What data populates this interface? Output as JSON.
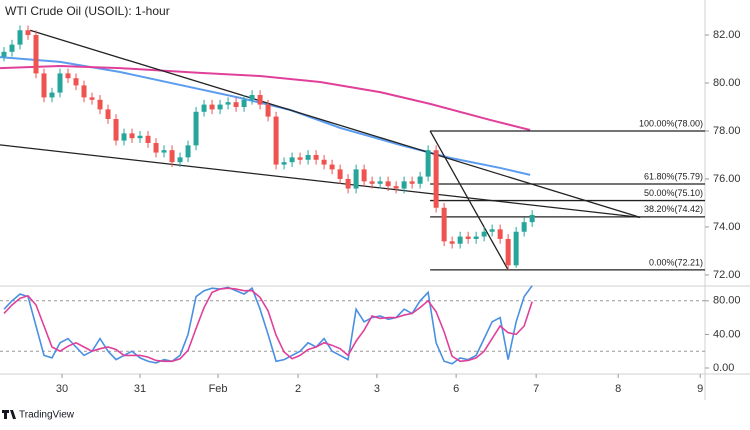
{
  "chart_data": [
    {
      "type": "candlestick",
      "title": "WTI Crude Oil (USOIL): 1-hour",
      "xlim": [
        -0.5,
        87.6
      ],
      "ylim": [
        71.58,
        83.46
      ],
      "yticks": [
        {
          "value": 72,
          "label": "72.00"
        },
        {
          "value": 74,
          "label": "74.00"
        },
        {
          "value": 76,
          "label": "76.00"
        },
        {
          "value": 78,
          "label": "78.00"
        },
        {
          "value": 80,
          "label": "80.00"
        },
        {
          "value": 82,
          "label": "82.00"
        }
      ],
      "up_color": "#26a69a",
      "down_color": "#ef5350",
      "open": [
        81.1,
        81.3,
        81.6,
        82.2,
        82.0,
        80.4,
        79.4,
        79.6,
        80.4,
        80.2,
        79.9,
        79.4,
        79.3,
        78.9,
        78.5,
        77.6,
        77.9,
        77.7,
        77.8,
        77.5,
        77.1,
        77.2,
        76.7,
        76.9,
        77.4,
        78.8,
        79.1,
        78.9,
        79.1,
        79.2,
        79.0,
        79.3,
        79.5,
        79.1,
        78.6,
        76.6,
        76.7,
        76.9,
        76.8,
        77.0,
        76.8,
        76.6,
        76.4,
        76.0,
        75.6,
        76.4,
        75.9,
        75.8,
        75.9,
        75.7,
        75.6,
        75.9,
        75.8,
        76.1,
        77.2,
        74.8,
        73.4,
        73.3,
        73.6,
        73.5,
        73.6,
        73.8,
        73.9,
        73.5,
        72.4,
        73.8,
        74.2
      ],
      "high": [
        81.5,
        81.8,
        82.4,
        82.4,
        82.2,
        80.6,
        79.8,
        80.6,
        80.6,
        80.4,
        80.1,
        79.6,
        79.5,
        79.1,
        78.7,
        78.1,
        78.1,
        78.0,
        78.0,
        77.7,
        77.4,
        77.4,
        77.1,
        77.6,
        79.0,
        79.3,
        79.3,
        79.3,
        79.4,
        79.4,
        79.5,
        79.7,
        79.7,
        79.3,
        78.8,
        76.9,
        77.1,
        77.1,
        77.2,
        77.2,
        77.0,
        76.8,
        76.6,
        76.2,
        76.6,
        76.6,
        76.1,
        76.1,
        76.1,
        75.9,
        76.1,
        76.1,
        76.3,
        77.4,
        77.4,
        75.0,
        73.6,
        73.8,
        73.8,
        73.8,
        74.0,
        74.1,
        74.1,
        73.7,
        74.0,
        74.4,
        74.7
      ],
      "low": [
        80.9,
        81.1,
        81.4,
        81.8,
        80.2,
        79.2,
        79.2,
        79.4,
        80.0,
        79.7,
        79.2,
        79.1,
        78.7,
        78.3,
        77.4,
        77.4,
        77.5,
        77.5,
        77.3,
        76.9,
        76.9,
        76.5,
        76.5,
        76.7,
        77.2,
        78.6,
        78.7,
        78.7,
        78.9,
        78.8,
        78.8,
        79.1,
        78.9,
        78.4,
        76.4,
        76.4,
        76.5,
        76.6,
        76.6,
        76.6,
        76.4,
        76.2,
        75.8,
        75.4,
        75.4,
        75.7,
        75.6,
        75.6,
        75.5,
        75.4,
        75.4,
        75.6,
        75.6,
        75.9,
        74.6,
        73.2,
        73.1,
        73.1,
        73.3,
        73.3,
        73.4,
        73.6,
        73.3,
        72.21,
        72.3,
        73.6,
        74.0
      ],
      "close": [
        81.3,
        81.6,
        82.2,
        82.0,
        80.4,
        79.4,
        79.6,
        80.4,
        80.2,
        79.9,
        79.4,
        79.3,
        78.9,
        78.5,
        77.6,
        77.9,
        77.7,
        77.8,
        77.5,
        77.1,
        77.2,
        76.7,
        76.9,
        77.4,
        78.8,
        79.1,
        78.9,
        79.1,
        79.2,
        79.0,
        79.3,
        79.5,
        79.1,
        78.6,
        76.6,
        76.7,
        76.9,
        76.8,
        77.0,
        76.8,
        76.6,
        76.4,
        76.0,
        75.6,
        76.4,
        75.9,
        75.8,
        75.9,
        75.7,
        75.6,
        75.9,
        75.8,
        76.1,
        77.2,
        74.8,
        73.4,
        73.3,
        73.6,
        73.5,
        73.6,
        73.8,
        73.9,
        73.5,
        72.4,
        73.8,
        74.2,
        74.5
      ],
      "moving_averages": [
        {
          "color": "#5b9cf0",
          "x": [
            -0.5,
            7,
            14.5,
            22,
            29.5,
            35.75,
            42,
            49.5,
            55.75,
            62,
            65.75
          ],
          "values": [
            81.08,
            80.88,
            80.46,
            79.92,
            79.38,
            78.88,
            78.13,
            77.42,
            76.88,
            76.46,
            76.17
          ]
        },
        {
          "color": "#e0409a",
          "x": [
            -0.5,
            7,
            14.5,
            24.5,
            32,
            39.5,
            47,
            53.25,
            60.75,
            65.75
          ],
          "values": [
            80.62,
            80.71,
            80.62,
            80.42,
            80.29,
            80.04,
            79.62,
            79.13,
            78.46,
            78.04
          ]
        }
      ],
      "trendlines": [
        {
          "x": [
            3.25,
            79.5
          ],
          "y": [
            82.2,
            74.4
          ]
        },
        {
          "x": [
            -0.5,
            79.5
          ],
          "y": [
            77.42,
            74.4
          ]
        },
        {
          "x": [
            53.25,
            63
          ],
          "y": [
            78.0,
            72.21
          ]
        }
      ],
      "fib": {
        "x_start": 53.25,
        "levels": [
          {
            "value": 78.0,
            "label": "100.00%(78.00)"
          },
          {
            "value": 75.79,
            "label": "61.80%(75.79)"
          },
          {
            "value": 75.1,
            "label": "50.00%(75.10)"
          },
          {
            "value": 74.42,
            "label": "38.20%(74.42)"
          },
          {
            "value": 72.21,
            "label": "0.00%(72.21)"
          }
        ]
      }
    },
    {
      "type": "line",
      "xlim": [
        -0.5,
        87.6
      ],
      "ylim": [
        0,
        100
      ],
      "yticks": [
        {
          "value": 0,
          "label": "0.00"
        },
        {
          "value": 40,
          "label": "40.00"
        },
        {
          "value": 80,
          "label": "80.00"
        }
      ],
      "bands": [
        20,
        80
      ],
      "xticks": [
        {
          "value": 7.25,
          "label": "30"
        },
        {
          "value": 17,
          "label": "31"
        },
        {
          "value": 26.75,
          "label": "Feb"
        },
        {
          "value": 36.75,
          "label": "2"
        },
        {
          "value": 46.6,
          "label": "3"
        },
        {
          "value": 56.5,
          "label": "6"
        },
        {
          "value": 66.5,
          "label": "7"
        },
        {
          "value": 76.75,
          "label": "8"
        },
        {
          "value": 87,
          "label": "9"
        }
      ],
      "series": [
        {
          "color": "#4a90e2",
          "values": [
            70,
            80,
            88,
            85,
            50,
            15,
            12,
            30,
            35,
            25,
            15,
            20,
            35,
            20,
            10,
            15,
            20,
            12,
            8,
            6,
            10,
            8,
            15,
            40,
            85,
            92,
            95,
            94,
            96,
            92,
            88,
            95,
            70,
            40,
            8,
            10,
            15,
            20,
            30,
            25,
            35,
            20,
            15,
            10,
            70,
            55,
            60,
            62,
            58,
            60,
            70,
            65,
            80,
            90,
            30,
            8,
            5,
            12,
            10,
            15,
            35,
            55,
            60,
            10,
            55,
            85,
            98
          ]
        },
        {
          "color": "#e0409a",
          "values": [
            65,
            75,
            83,
            86,
            75,
            50,
            25,
            20,
            26,
            30,
            25,
            20,
            23,
            25,
            22,
            15,
            15,
            15,
            13,
            9,
            8,
            8,
            11,
            21,
            47,
            72,
            90,
            94,
            95,
            94,
            92,
            92,
            84,
            68,
            39,
            19,
            11,
            15,
            22,
            25,
            30,
            27,
            23,
            15,
            32,
            45,
            62,
            59,
            60,
            60,
            63,
            65,
            72,
            80,
            67,
            43,
            14,
            8,
            9,
            12,
            20,
            35,
            50,
            42,
            40,
            50,
            79
          ]
        }
      ]
    }
  ],
  "footer": "TradingView"
}
